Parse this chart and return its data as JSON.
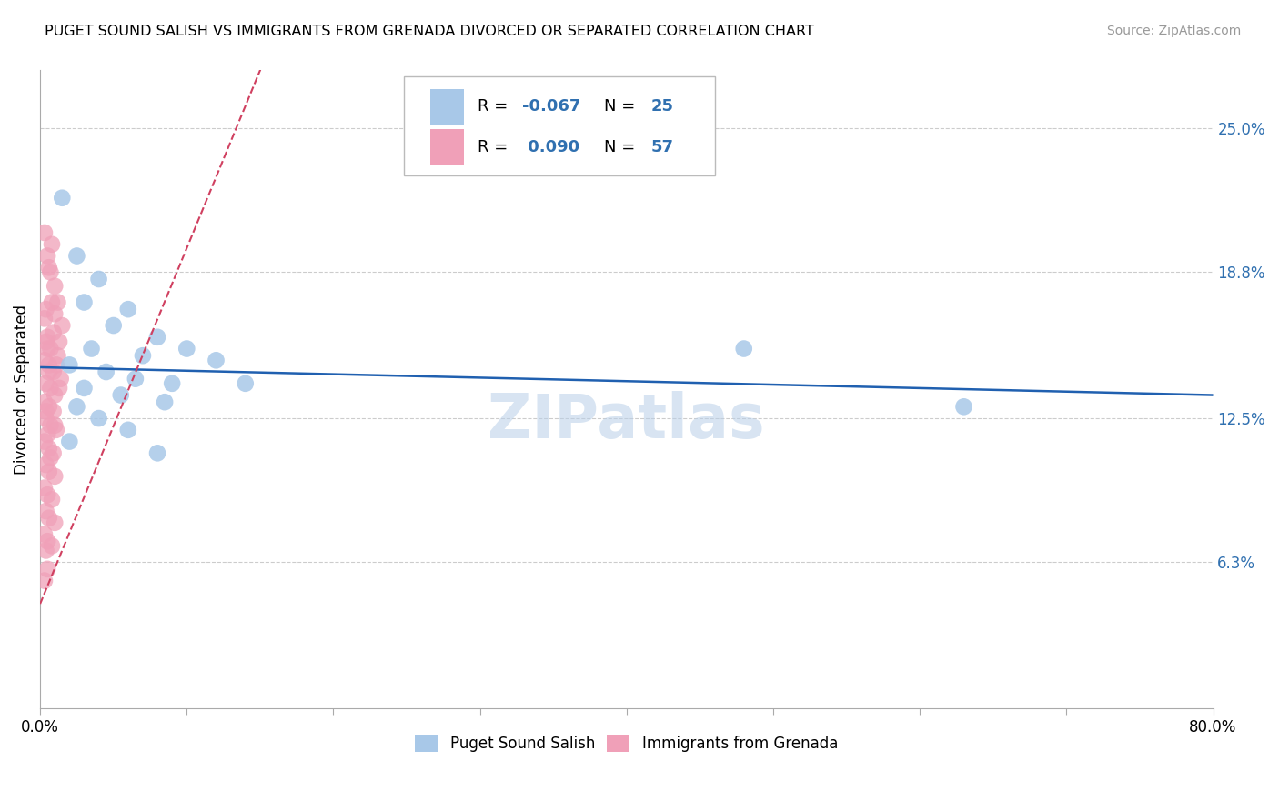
{
  "title": "PUGET SOUND SALISH VS IMMIGRANTS FROM GRENADA DIVORCED OR SEPARATED CORRELATION CHART",
  "source": "Source: ZipAtlas.com",
  "xlabel_bottom_left": "0.0%",
  "xlabel_bottom_right": "80.0%",
  "ylabel": "Divorced or Separated",
  "ytick_labels": [
    "6.3%",
    "12.5%",
    "18.8%",
    "25.0%"
  ],
  "ytick_values": [
    6.3,
    12.5,
    18.8,
    25.0
  ],
  "xlim": [
    0.0,
    80.0
  ],
  "ylim": [
    0.0,
    27.5
  ],
  "color_blue": "#a8c8e8",
  "color_pink": "#f0a0b8",
  "trend_blue_color": "#2060b0",
  "trend_pink_color": "#d04060",
  "watermark": "ZIPatlas",
  "blue_trend_x0": 0.0,
  "blue_trend_y0": 14.7,
  "blue_trend_x1": 80.0,
  "blue_trend_y1": 13.5,
  "pink_trend_x0": 0.0,
  "pink_trend_y0": 4.5,
  "pink_trend_x1": 15.0,
  "pink_trend_y1": 27.5,
  "blue_scatter": [
    [
      1.5,
      22.0
    ],
    [
      2.5,
      19.5
    ],
    [
      4.0,
      18.5
    ],
    [
      3.0,
      17.5
    ],
    [
      6.0,
      17.2
    ],
    [
      5.0,
      16.5
    ],
    [
      8.0,
      16.0
    ],
    [
      10.0,
      15.5
    ],
    [
      3.5,
      15.5
    ],
    [
      7.0,
      15.2
    ],
    [
      12.0,
      15.0
    ],
    [
      2.0,
      14.8
    ],
    [
      4.5,
      14.5
    ],
    [
      6.5,
      14.2
    ],
    [
      9.0,
      14.0
    ],
    [
      14.0,
      14.0
    ],
    [
      3.0,
      13.8
    ],
    [
      5.5,
      13.5
    ],
    [
      8.5,
      13.2
    ],
    [
      2.5,
      13.0
    ],
    [
      4.0,
      12.5
    ],
    [
      6.0,
      12.0
    ],
    [
      2.0,
      11.5
    ],
    [
      8.0,
      11.0
    ],
    [
      48.0,
      15.5
    ],
    [
      63.0,
      13.0
    ]
  ],
  "pink_scatter": [
    [
      0.3,
      16.8
    ],
    [
      0.5,
      16.0
    ],
    [
      0.8,
      17.5
    ],
    [
      1.0,
      17.0
    ],
    [
      1.5,
      16.5
    ],
    [
      0.4,
      15.8
    ],
    [
      0.7,
      15.5
    ],
    [
      1.2,
      15.2
    ],
    [
      0.3,
      15.0
    ],
    [
      0.6,
      14.8
    ],
    [
      0.9,
      14.5
    ],
    [
      1.4,
      14.2
    ],
    [
      0.4,
      14.0
    ],
    [
      0.7,
      13.8
    ],
    [
      1.0,
      13.5
    ],
    [
      0.3,
      13.2
    ],
    [
      0.6,
      13.0
    ],
    [
      0.9,
      12.8
    ],
    [
      0.4,
      12.5
    ],
    [
      0.7,
      12.2
    ],
    [
      1.1,
      12.0
    ],
    [
      0.3,
      11.5
    ],
    [
      0.6,
      11.2
    ],
    [
      0.9,
      11.0
    ],
    [
      0.4,
      10.5
    ],
    [
      0.6,
      10.2
    ],
    [
      1.0,
      10.0
    ],
    [
      0.3,
      9.5
    ],
    [
      0.5,
      9.2
    ],
    [
      0.8,
      9.0
    ],
    [
      0.4,
      8.5
    ],
    [
      0.6,
      8.2
    ],
    [
      1.0,
      8.0
    ],
    [
      0.3,
      7.5
    ],
    [
      0.5,
      7.2
    ],
    [
      0.8,
      7.0
    ],
    [
      0.4,
      6.8
    ],
    [
      0.3,
      20.5
    ],
    [
      0.5,
      19.5
    ],
    [
      0.7,
      18.8
    ],
    [
      1.0,
      18.2
    ],
    [
      0.6,
      19.0
    ],
    [
      0.8,
      20.0
    ],
    [
      1.2,
      17.5
    ],
    [
      0.4,
      17.2
    ],
    [
      0.9,
      16.2
    ],
    [
      1.3,
      15.8
    ],
    [
      0.5,
      15.5
    ],
    [
      1.1,
      14.8
    ],
    [
      0.6,
      14.5
    ],
    [
      1.3,
      13.8
    ],
    [
      0.4,
      12.8
    ],
    [
      1.0,
      12.2
    ],
    [
      0.5,
      11.8
    ],
    [
      0.7,
      10.8
    ],
    [
      0.3,
      5.5
    ],
    [
      0.5,
      6.0
    ]
  ]
}
